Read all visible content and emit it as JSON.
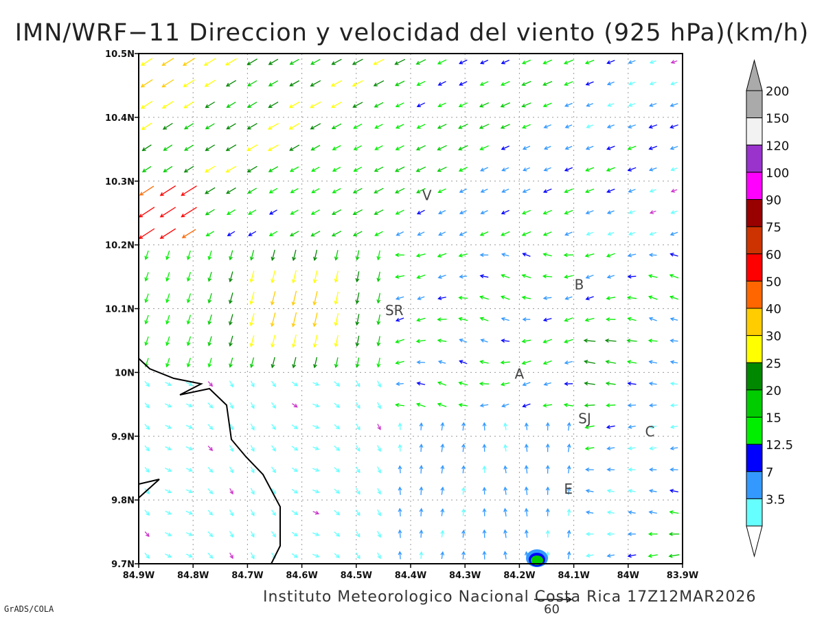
{
  "title": "IMN/WRF−11 Direccion y velocidad del viento (925 hPa)(km/h)",
  "footer": "Instituto Meteorologico Nacional Costa Rica 17Z12MAR2026",
  "software": "GrADS/COLA",
  "reference_vector_label": "60",
  "map": {
    "lon_range": [
      -84.9,
      -83.9
    ],
    "lat_range": [
      9.7,
      10.5
    ],
    "lon_ticks": [
      "84.9W",
      "84.8W",
      "84.7W",
      "84.6W",
      "84.5W",
      "84.4W",
      "84.3W",
      "84.2W",
      "84.1W",
      "84W",
      "83.9W"
    ],
    "lat_ticks": [
      "9.7N",
      "9.8N",
      "9.9N",
      "10N",
      "10.1N",
      "10.2N",
      "10.3N",
      "10.4N",
      "10.5N"
    ],
    "grid": "dotted",
    "places": [
      {
        "label": "V",
        "lon": -84.37,
        "lat": 10.27
      },
      {
        "label": "SR",
        "lon": -84.43,
        "lat": 10.09
      },
      {
        "label": "B",
        "lon": -84.09,
        "lat": 10.13
      },
      {
        "label": "A",
        "lon": -84.2,
        "lat": 9.99
      },
      {
        "label": "SJ",
        "lon": -84.08,
        "lat": 9.92
      },
      {
        "label": "C",
        "lon": -83.96,
        "lat": 9.9
      },
      {
        "label": "E",
        "lon": -84.11,
        "lat": 9.81
      }
    ]
  },
  "colorbar": {
    "labels": [
      "3.5",
      "7",
      "12.5",
      "15",
      "20",
      "25",
      "30",
      "40",
      "50",
      "60",
      "75",
      "90",
      "100",
      "120",
      "150",
      "200"
    ],
    "colors": [
      "#66ffff",
      "#3399ff",
      "#0000ff",
      "#00ee00",
      "#00cc00",
      "#008800",
      "#ffff00",
      "#ffcc00",
      "#ff6600",
      "#ff0000",
      "#cc3300",
      "#990000",
      "#ff00ff",
      "#9933cc",
      "#f2f2f2",
      "#aaaaaa"
    ]
  }
}
